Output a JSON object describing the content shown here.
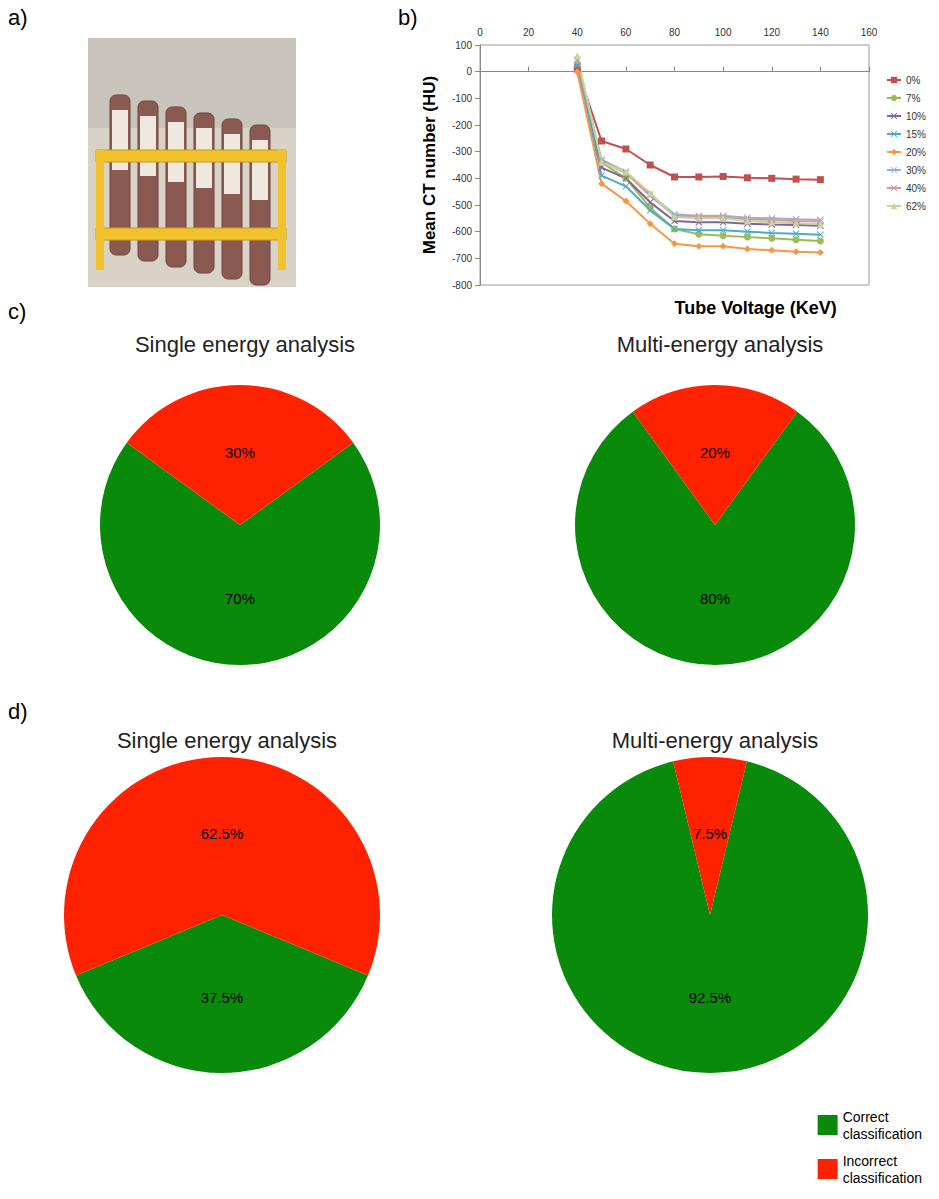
{
  "photo": {
    "panel": "a)"
  },
  "chart_data": [
    {
      "type": "line",
      "panel": "b)",
      "x_label": "Tube Voltage (KeV)",
      "y_label": "Mean CT number (HU)",
      "x": [
        40,
        50,
        60,
        70,
        80,
        90,
        100,
        110,
        120,
        130,
        140
      ],
      "xlim": [
        0,
        160
      ],
      "xticks": [
        0,
        20,
        40,
        60,
        80,
        100,
        120,
        140,
        160
      ],
      "ylim": [
        -800,
        100
      ],
      "yticks": [
        -800,
        -700,
        -600,
        -500,
        -400,
        -300,
        -200,
        -100,
        0,
        100
      ],
      "grid": false,
      "legend": "right",
      "series": [
        {
          "name": "0%",
          "color": "#c0504d",
          "marker": "square",
          "values": [
            10,
            -260,
            -290,
            -350,
            -395,
            -395,
            -393,
            -398,
            -400,
            -403,
            -405
          ]
        },
        {
          "name": "7%",
          "color": "#9bbb59",
          "marker": "circle",
          "values": [
            30,
            -340,
            -400,
            -510,
            -590,
            -610,
            -615,
            -620,
            -625,
            -630,
            -635
          ]
        },
        {
          "name": "10%",
          "color": "#8064a2",
          "marker": "cross",
          "values": [
            20,
            -360,
            -400,
            -490,
            -560,
            -565,
            -565,
            -570,
            -573,
            -575,
            -578
          ]
        },
        {
          "name": "15%",
          "color": "#4bacc6",
          "marker": "cross",
          "values": [
            25,
            -390,
            -430,
            -520,
            -590,
            -595,
            -595,
            -600,
            -605,
            -608,
            -612
          ]
        },
        {
          "name": "20%",
          "color": "#f79646",
          "marker": "diamond",
          "values": [
            0,
            -420,
            -485,
            -570,
            -645,
            -655,
            -655,
            -665,
            -670,
            -675,
            -678
          ]
        },
        {
          "name": "30%",
          "color": "#95b3d7",
          "marker": "cross",
          "values": [
            40,
            -330,
            -375,
            -460,
            -535,
            -540,
            -540,
            -548,
            -550,
            -553,
            -555
          ]
        },
        {
          "name": "40%",
          "color": "#d99694",
          "marker": "cross",
          "values": [
            45,
            -335,
            -380,
            -465,
            -540,
            -545,
            -545,
            -553,
            -556,
            -560,
            -562
          ]
        },
        {
          "name": "62%",
          "color": "#c3d69b",
          "marker": "triangle",
          "values": [
            60,
            -340,
            -375,
            -455,
            -545,
            -550,
            -550,
            -560,
            -565,
            -568,
            -572
          ]
        }
      ]
    },
    {
      "type": "pie",
      "panel": "c)",
      "title": "Single energy analysis",
      "categories": [
        "Correct classification",
        "Incorrect classification"
      ],
      "values": [
        70,
        30
      ],
      "value_labels": [
        "70%",
        "30%"
      ],
      "colors": [
        "#0a8a0a",
        "#ff2200"
      ],
      "data_labels": true
    },
    {
      "type": "pie",
      "title": "Multi-energy analysis",
      "categories": [
        "Correct classification",
        "Incorrect classification"
      ],
      "values": [
        80,
        20
      ],
      "value_labels": [
        "80%",
        "20%"
      ],
      "colors": [
        "#0a8a0a",
        "#ff2200"
      ],
      "data_labels": true
    },
    {
      "type": "pie",
      "panel": "d)",
      "title": "Single energy analysis",
      "categories": [
        "Correct classification",
        "Incorrect classification"
      ],
      "values": [
        37.5,
        62.5
      ],
      "value_labels": [
        "37.5%",
        "62.5%"
      ],
      "colors": [
        "#0a8a0a",
        "#ff2200"
      ],
      "data_labels": true
    },
    {
      "type": "pie",
      "title": "Multi-energy analysis",
      "categories": [
        "Correct classification",
        "Incorrect classification"
      ],
      "values": [
        92.5,
        7.5
      ],
      "value_labels": [
        "92.5%",
        "7.5%"
      ],
      "colors": [
        "#0a8a0a",
        "#ff2200"
      ],
      "data_labels": true,
      "legend": "lower right"
    }
  ]
}
